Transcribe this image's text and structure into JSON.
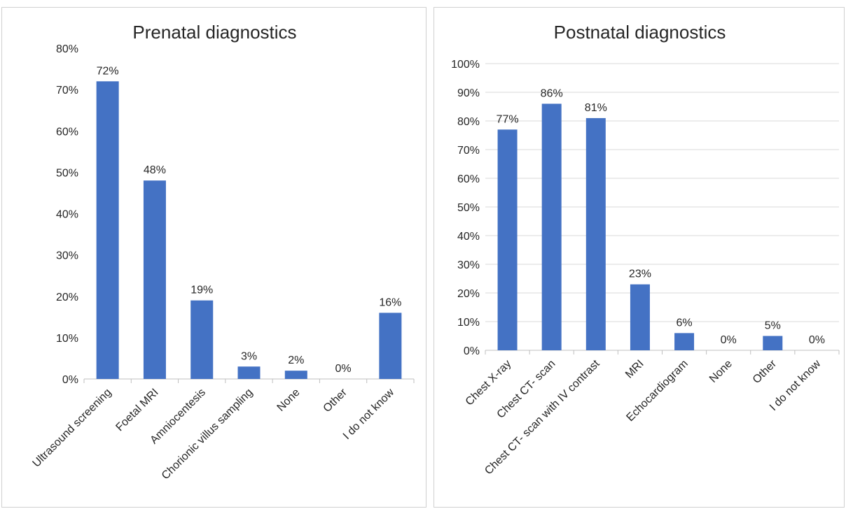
{
  "chart_data": [
    {
      "type": "bar",
      "title": "Prenatal diagnostics",
      "categories": [
        "Ultrasound screening",
        "Foetal MRI",
        "Amniocentesis",
        "Chorionic villus sampling",
        "None",
        "Other",
        "I do not know"
      ],
      "values": [
        72,
        48,
        19,
        3,
        2,
        0,
        16
      ],
      "data_labels": [
        "72%",
        "48%",
        "19%",
        "3%",
        "2%",
        "0%",
        "16%"
      ],
      "ylim": [
        0,
        80
      ],
      "yticks": [
        "0%",
        "10%",
        "20%",
        "30%",
        "40%",
        "50%",
        "60%",
        "70%",
        "80%"
      ],
      "grid": false,
      "bar_color": "#4472C4"
    },
    {
      "type": "bar",
      "title": "Postnatal diagnostics",
      "categories": [
        "Chest X-ray",
        "Chest CT- scan",
        "Chest CT- scan with IV contrast",
        "MRI",
        "Echocardiogram",
        "None",
        "Other",
        "I do not know"
      ],
      "values": [
        77,
        86,
        81,
        23,
        6,
        0,
        5,
        0
      ],
      "data_labels": [
        "77%",
        "86%",
        "81%",
        "23%",
        "6%",
        "0%",
        "5%",
        "0%"
      ],
      "ylim": [
        0,
        100
      ],
      "yticks": [
        "0%",
        "10%",
        "20%",
        "30%",
        "40%",
        "50%",
        "60%",
        "70%",
        "80%",
        "90%",
        "100%"
      ],
      "grid": true,
      "bar_color": "#4472C4"
    }
  ]
}
